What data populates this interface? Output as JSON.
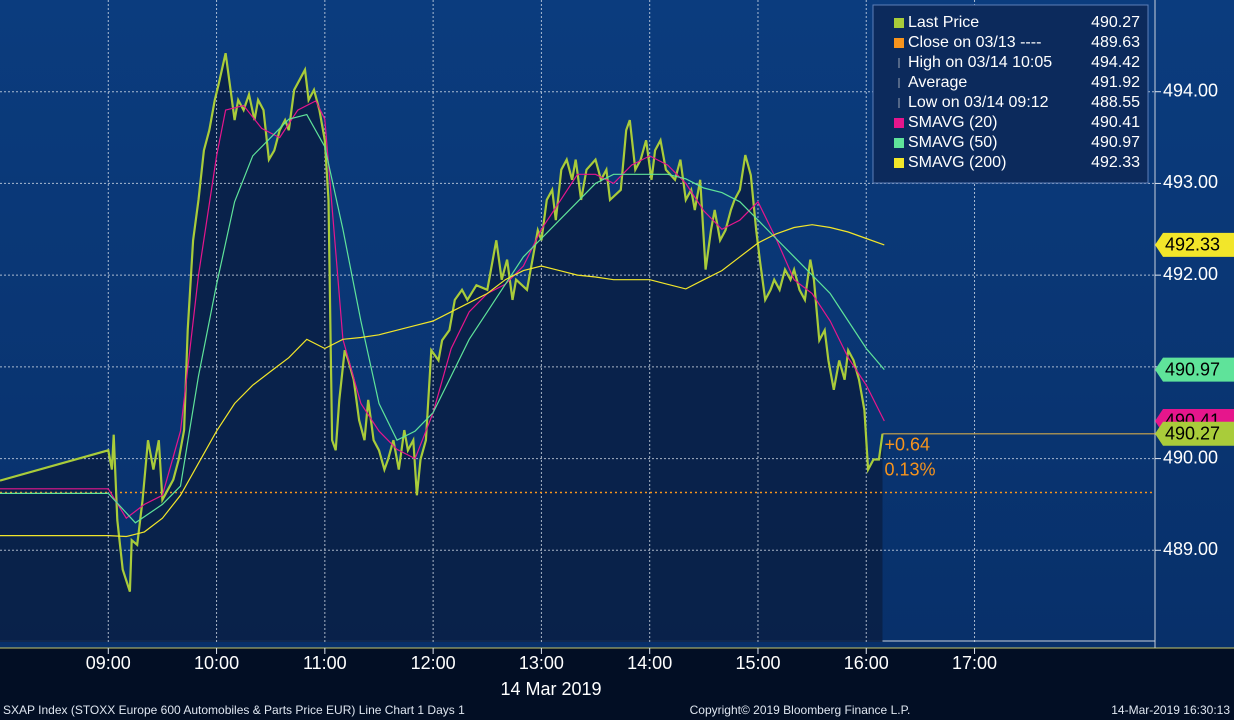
{
  "chart_data": {
    "type": "line",
    "date_label": "14 Mar 2019",
    "footer_left": "SXAP Index (STOXX Europe 600 Automobiles & Parts Price EUR) Line Chart 1 Days 1",
    "footer_center": "Copyright© 2019 Bloomberg Finance L.P.",
    "footer_right": "14-Mar-2019 16:30:13",
    "xlim": [
      "08:00",
      "18:40"
    ],
    "xticks": [
      "09:00",
      "10:00",
      "11:00",
      "12:00",
      "13:00",
      "14:00",
      "15:00",
      "16:00",
      "17:00"
    ],
    "ylim": [
      488,
      495
    ],
    "yticks": [
      {
        "value": 489,
        "label": "489.00"
      },
      {
        "value": 490,
        "label": "490.00"
      },
      {
        "value": 491,
        "label": "491.00"
      },
      {
        "value": 492,
        "label": "492.00"
      },
      {
        "value": 493,
        "label": "493.00"
      },
      {
        "value": 494,
        "label": "494.00"
      }
    ],
    "grid": true,
    "series": [
      {
        "name": "Last Price",
        "color": "#a9cc3a",
        "last": 490.27,
        "x": [
          "08:00",
          "09:00",
          "09:02",
          "09:03",
          "09:05",
          "09:08",
          "09:12",
          "09:13",
          "09:16",
          "09:19",
          "09:22",
          "09:25",
          "09:28",
          "09:30",
          "09:33",
          "09:36",
          "09:39",
          "09:42",
          "09:44",
          "09:47",
          "09:50",
          "09:53",
          "09:56",
          "09:59",
          "10:01",
          "10:05",
          "10:07",
          "10:10",
          "10:12",
          "10:15",
          "10:18",
          "10:21",
          "10:23",
          "10:26",
          "10:29",
          "10:32",
          "10:35",
          "10:38",
          "10:40",
          "10:43",
          "10:46",
          "10:49",
          "10:51",
          "10:54",
          "10:57",
          "11:00",
          "11:02",
          "11:04",
          "11:06",
          "11:08",
          "11:11",
          "11:13",
          "11:16",
          "11:19",
          "11:22",
          "11:24",
          "11:27",
          "11:30",
          "11:33",
          "11:35",
          "11:38",
          "11:41",
          "11:44",
          "11:46",
          "11:49",
          "11:51",
          "11:53",
          "11:56",
          "11:59",
          "12:03",
          "12:05",
          "12:09",
          "12:12",
          "12:16",
          "12:19",
          "12:24",
          "12:30",
          "12:35",
          "12:38",
          "12:41",
          "12:44",
          "12:46",
          "12:52",
          "12:58",
          "13:00",
          "13:03",
          "13:06",
          "13:08",
          "13:11",
          "13:14",
          "13:17",
          "13:19",
          "13:22",
          "13:25",
          "13:30",
          "13:33",
          "13:36",
          "13:38",
          "13:44",
          "13:47",
          "13:49",
          "13:52",
          "13:55",
          "13:58",
          "14:01",
          "14:03",
          "14:06",
          "14:09",
          "14:14",
          "14:17",
          "14:20",
          "14:23",
          "14:25",
          "14:28",
          "14:31",
          "14:34",
          "14:36",
          "14:39",
          "14:42",
          "14:45",
          "14:47",
          "14:50",
          "14:53",
          "14:56",
          "14:59",
          "15:01",
          "15:04",
          "15:07",
          "15:09",
          "15:12",
          "15:15",
          "15:18",
          "15:20",
          "15:23",
          "15:26",
          "15:29",
          "15:31",
          "15:34",
          "15:37",
          "15:39",
          "15:42",
          "15:45",
          "15:48",
          "15:50",
          "15:53",
          "15:56",
          "15:59",
          "16:01",
          "16:04",
          "16:07",
          "16:09"
        ],
        "values": [
          489.76,
          490.09,
          489.88,
          490.26,
          489.33,
          488.79,
          488.55,
          489.11,
          489.06,
          489.55,
          490.2,
          489.88,
          490.2,
          489.55,
          489.66,
          489.77,
          489.99,
          490.31,
          491.4,
          492.38,
          492.82,
          493.36,
          493.58,
          493.91,
          494.07,
          494.42,
          494.13,
          493.69,
          493.91,
          493.8,
          493.97,
          493.69,
          493.91,
          493.8,
          493.26,
          493.36,
          493.58,
          493.69,
          493.58,
          494.02,
          494.13,
          494.24,
          493.91,
          494.02,
          493.8,
          493.47,
          492.82,
          490.2,
          490.09,
          490.64,
          491.18,
          491.07,
          490.86,
          490.42,
          490.2,
          490.64,
          490.2,
          490.09,
          489.88,
          489.99,
          490.2,
          489.88,
          490.31,
          490.09,
          490.2,
          489.6,
          489.99,
          490.2,
          491.18,
          491.07,
          491.29,
          491.4,
          491.73,
          491.84,
          491.73,
          491.89,
          491.84,
          492.38,
          491.95,
          492.17,
          491.73,
          491.95,
          491.84,
          492.49,
          492.38,
          492.82,
          492.93,
          492.6,
          493.15,
          493.26,
          493.04,
          493.26,
          492.82,
          493.15,
          493.26,
          493.04,
          493.15,
          492.82,
          492.93,
          493.58,
          493.69,
          493.15,
          493.26,
          493.47,
          493.04,
          493.36,
          493.47,
          493.15,
          493.04,
          493.26,
          492.82,
          492.93,
          492.71,
          493.04,
          492.06,
          492.49,
          492.71,
          492.38,
          492.49,
          492.71,
          492.82,
          492.93,
          493.31,
          493.09,
          492.49,
          492.17,
          491.73,
          491.84,
          491.95,
          491.84,
          492.06,
          491.95,
          492.06,
          491.84,
          491.73,
          492.17,
          491.95,
          491.29,
          491.4,
          491.07,
          490.75,
          491.07,
          490.86,
          491.18,
          491.07,
          490.86,
          490.53,
          489.88,
          489.99,
          489.99,
          490.27
        ]
      },
      {
        "name": "SMAVG (20)",
        "color": "#e6168c",
        "last": 490.41,
        "x": [
          "08:00",
          "09:00",
          "09:10",
          "09:20",
          "09:30",
          "09:40",
          "09:50",
          "10:00",
          "10:05",
          "10:15",
          "10:25",
          "10:35",
          "10:45",
          "10:55",
          "11:00",
          "11:05",
          "11:10",
          "11:20",
          "11:30",
          "11:40",
          "11:50",
          "12:00",
          "12:10",
          "12:20",
          "12:30",
          "12:40",
          "12:50",
          "13:00",
          "13:10",
          "13:20",
          "13:30",
          "13:40",
          "13:50",
          "14:00",
          "14:10",
          "14:20",
          "14:30",
          "14:40",
          "14:50",
          "15:00",
          "15:10",
          "15:20",
          "15:30",
          "15:40",
          "15:50",
          "16:00",
          "16:10"
        ],
        "values": [
          489.67,
          489.67,
          489.35,
          489.5,
          489.6,
          490.3,
          492.0,
          493.3,
          493.8,
          493.85,
          493.6,
          493.5,
          493.8,
          493.9,
          493.7,
          492.5,
          491.3,
          490.6,
          490.3,
          490.1,
          490.0,
          490.5,
          491.2,
          491.6,
          491.8,
          491.9,
          492.1,
          492.5,
          492.8,
          493.1,
          493.1,
          493.0,
          493.2,
          493.3,
          493.2,
          493.0,
          492.7,
          492.5,
          492.6,
          492.8,
          492.4,
          491.95,
          491.8,
          491.5,
          491.1,
          490.8,
          490.41
        ]
      },
      {
        "name": "SMAVG (50)",
        "color": "#5fe39a",
        "last": 490.97,
        "x": [
          "08:00",
          "09:00",
          "09:15",
          "09:30",
          "09:40",
          "09:50",
          "10:00",
          "10:10",
          "10:20",
          "10:30",
          "10:40",
          "10:50",
          "11:00",
          "11:10",
          "11:20",
          "11:30",
          "11:40",
          "11:50",
          "12:00",
          "12:10",
          "12:20",
          "12:30",
          "12:40",
          "12:50",
          "13:00",
          "13:10",
          "13:20",
          "13:30",
          "13:40",
          "13:50",
          "14:00",
          "14:10",
          "14:20",
          "14:30",
          "14:40",
          "14:50",
          "15:00",
          "15:10",
          "15:20",
          "15:30",
          "15:40",
          "15:50",
          "16:00",
          "16:10"
        ],
        "values": [
          489.62,
          489.62,
          489.3,
          489.5,
          489.7,
          490.9,
          491.9,
          492.8,
          493.3,
          493.5,
          493.7,
          493.75,
          493.4,
          492.5,
          491.5,
          490.6,
          490.2,
          490.3,
          490.5,
          490.9,
          491.3,
          491.6,
          491.9,
          492.2,
          492.4,
          492.6,
          492.8,
          493.0,
          493.1,
          493.1,
          493.1,
          493.1,
          493.05,
          492.95,
          492.9,
          492.8,
          492.6,
          492.4,
          492.2,
          492.0,
          491.8,
          491.5,
          491.2,
          490.97
        ]
      },
      {
        "name": "SMAVG (200)",
        "color": "#f2e62a",
        "last": 492.33,
        "x": [
          "08:00",
          "09:00",
          "09:10",
          "09:20",
          "09:30",
          "09:40",
          "09:50",
          "10:00",
          "10:10",
          "10:20",
          "10:30",
          "10:40",
          "10:50",
          "11:00",
          "11:10",
          "11:20",
          "11:30",
          "11:40",
          "11:50",
          "12:00",
          "12:10",
          "12:20",
          "12:30",
          "12:40",
          "12:50",
          "13:00",
          "13:10",
          "13:20",
          "13:30",
          "13:40",
          "13:50",
          "14:00",
          "14:10",
          "14:20",
          "14:30",
          "14:40",
          "14:50",
          "15:00",
          "15:10",
          "15:20",
          "15:30",
          "15:40",
          "15:50",
          "16:00",
          "16:10"
        ],
        "values": [
          489.16,
          489.16,
          489.15,
          489.2,
          489.35,
          489.6,
          489.95,
          490.3,
          490.6,
          490.8,
          490.95,
          491.1,
          491.3,
          491.2,
          491.3,
          491.32,
          491.35,
          491.4,
          491.45,
          491.5,
          491.6,
          491.7,
          491.8,
          491.95,
          492.05,
          492.1,
          492.05,
          492.0,
          491.98,
          491.95,
          491.95,
          491.95,
          491.9,
          491.85,
          491.95,
          492.05,
          492.2,
          492.35,
          492.45,
          492.52,
          492.55,
          492.52,
          492.47,
          492.4,
          492.33
        ]
      }
    ],
    "references": [
      {
        "name": "Close on 03/13 ----",
        "value": 489.63,
        "color": "#f7941d"
      },
      {
        "name": "High on 03/14 10:05",
        "value": 494.42,
        "color": "#9aa4b4"
      },
      {
        "name": "Average",
        "value": 491.92,
        "color": "#9aa4b4"
      },
      {
        "name": "Low on 03/14 09:12",
        "value": 488.55,
        "color": "#9aa4b4"
      }
    ],
    "change": {
      "value": 0.64,
      "label": "+0.64"
    },
    "change_pct": {
      "value": 0.13,
      "label": "0.13%"
    }
  }
}
